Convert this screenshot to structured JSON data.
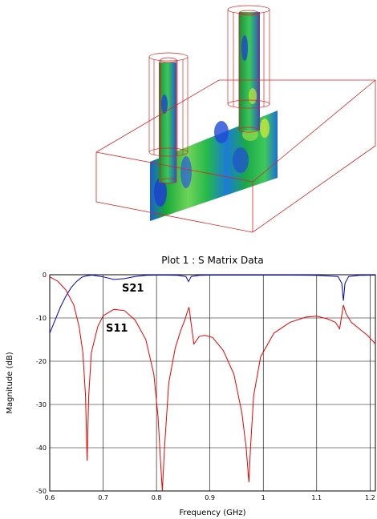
{
  "chart_data": {
    "type": "line",
    "title": "Plot 1 : S Matrix Data",
    "xlabel": "Frequency (GHz)",
    "ylabel": "Magnitude (dB)",
    "xlim": [
      0.6,
      1.21
    ],
    "ylim": [
      -50,
      0
    ],
    "x_ticks": [
      "0.6",
      "0.7",
      "0.8",
      "0.9",
      "1",
      "1.1",
      "1.2"
    ],
    "y_ticks": [
      "0",
      "-10",
      "-20",
      "-30",
      "-40",
      "-50"
    ],
    "grid": true,
    "series": [
      {
        "name": "S21",
        "color": "#0000cc",
        "x": [
          0.6,
          0.61,
          0.62,
          0.63,
          0.64,
          0.65,
          0.66,
          0.67,
          0.68,
          0.7,
          0.72,
          0.74,
          0.76,
          0.78,
          0.8,
          0.82,
          0.84,
          0.855,
          0.86,
          0.865,
          0.88,
          0.9,
          0.95,
          1.0,
          1.05,
          1.1,
          1.14,
          1.147,
          1.15,
          1.153,
          1.16,
          1.18,
          1.21
        ],
        "y": [
          -13.5,
          -10.5,
          -7.5,
          -5.0,
          -3.0,
          -1.6,
          -0.6,
          -0.2,
          -0.1,
          -0.5,
          -1.1,
          -0.9,
          -0.4,
          -0.15,
          -0.1,
          -0.1,
          -0.15,
          -0.4,
          -1.6,
          -0.4,
          -0.15,
          -0.1,
          -0.1,
          -0.1,
          -0.1,
          -0.15,
          -0.4,
          -2.0,
          -6.0,
          -2.0,
          -0.4,
          -0.15,
          -0.1
        ]
      },
      {
        "name": "S11",
        "color": "#ee0000",
        "x": [
          0.6,
          0.615,
          0.63,
          0.645,
          0.655,
          0.662,
          0.667,
          0.67,
          0.673,
          0.678,
          0.69,
          0.7,
          0.72,
          0.74,
          0.76,
          0.78,
          0.795,
          0.803,
          0.808,
          0.811,
          0.815,
          0.823,
          0.835,
          0.845,
          0.853,
          0.858,
          0.861,
          0.864,
          0.87,
          0.88,
          0.89,
          0.905,
          0.925,
          0.945,
          0.96,
          0.968,
          0.973,
          0.976,
          0.982,
          0.995,
          1.02,
          1.05,
          1.08,
          1.1,
          1.12,
          1.135,
          1.143,
          1.15,
          1.155,
          1.165,
          1.18,
          1.195,
          1.21
        ],
        "y": [
          -0.5,
          -1.5,
          -3.5,
          -7.0,
          -12.0,
          -18.0,
          -28.0,
          -43.0,
          -28.0,
          -18.0,
          -12.0,
          -9.5,
          -8.0,
          -8.3,
          -10.5,
          -15.0,
          -23.0,
          -33.0,
          -44.0,
          -50.0,
          -40.0,
          -25.0,
          -17.0,
          -13.0,
          -10.5,
          -8.5,
          -7.5,
          -10.5,
          -16.0,
          -14.3,
          -14.0,
          -14.5,
          -17.5,
          -23.0,
          -32.0,
          -40.0,
          -48.0,
          -40.0,
          -28.0,
          -19.0,
          -13.5,
          -11.0,
          -9.8,
          -9.6,
          -10.2,
          -11.0,
          -12.5,
          -7.0,
          -9.0,
          -11.0,
          -12.5,
          -14.0,
          -16.0
        ]
      }
    ]
  }
}
